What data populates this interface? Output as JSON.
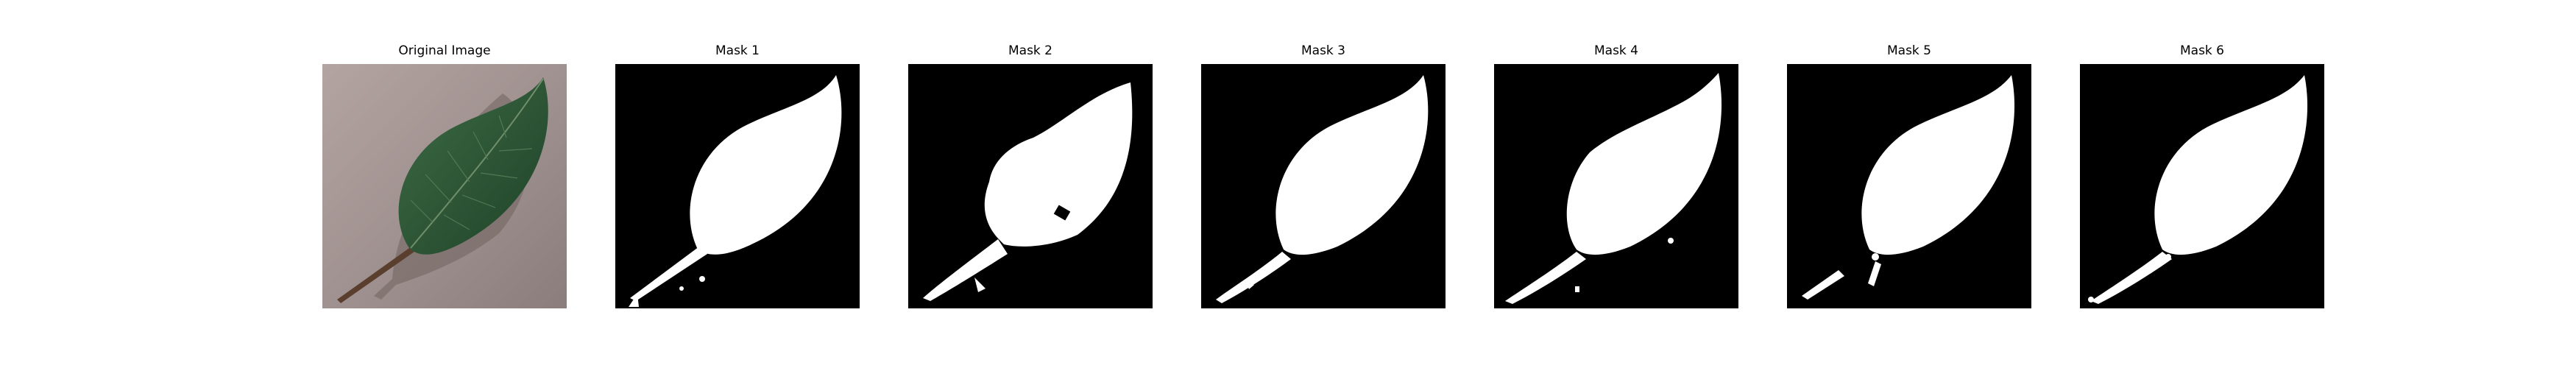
{
  "panels": [
    {
      "title": "Original Image"
    },
    {
      "title": "Mask 1"
    },
    {
      "title": "Mask 2"
    },
    {
      "title": "Mask 3"
    },
    {
      "title": "Mask 4"
    },
    {
      "title": "Mask 5"
    },
    {
      "title": "Mask 6"
    }
  ],
  "colors": {
    "background": "#ffffff",
    "mask_background": "#000000",
    "mask_foreground": "#ffffff",
    "photo_background": "#9e8e8a",
    "leaf": "#2f5a38"
  }
}
